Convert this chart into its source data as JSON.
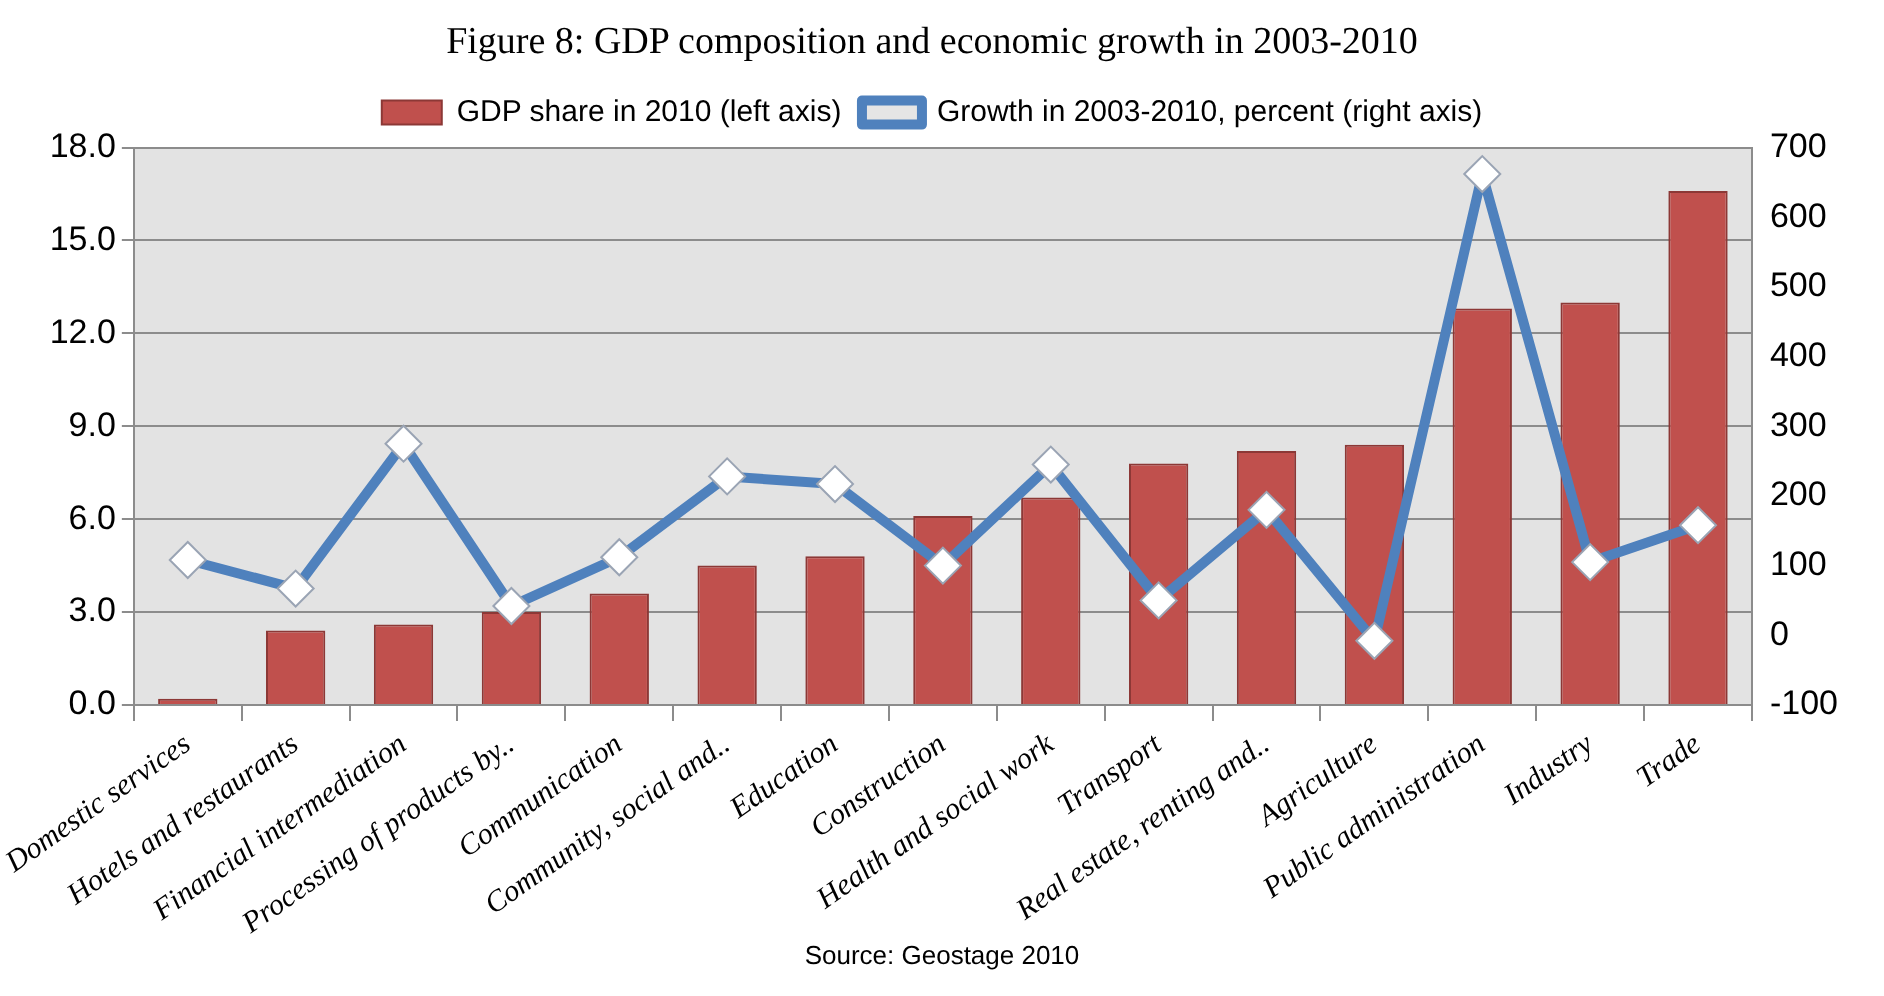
{
  "chart_data": {
    "type": "bar",
    "title": "Figure 8: GDP composition and economic growth in 2003-2010",
    "categories": [
      "Domestic services",
      "Hotels and restaurants",
      "Financial intermediation",
      "Processing of products by..",
      "Communication",
      "Community, social and..",
      "Education",
      "Construction",
      "Health and social work",
      "Transport",
      "Real estate, renting and..",
      "Agriculture",
      "Public administration",
      "Industry",
      "Trade"
    ],
    "series": [
      {
        "name": "GDP share in 2010 (left axis)",
        "color": "#c0504d",
        "values": [
          0.2,
          2.4,
          2.6,
          3.0,
          3.6,
          4.5,
          4.8,
          6.1,
          6.7,
          7.8,
          8.2,
          8.4,
          12.8,
          13.0,
          16.6
        ]
      },
      {
        "name": "Growth in 2003-2010, percent (right axis)",
        "type": "line",
        "axis": "y2",
        "color": "#4f81bd",
        "values": [
          108,
          67,
          275,
          42,
          112,
          228,
          217,
          100,
          245,
          50,
          180,
          -8,
          662,
          105,
          158
        ]
      }
    ],
    "ylim": [
      0,
      18
    ],
    "yticks": [
      {
        "value": 0,
        "label": "0.0"
      },
      {
        "value": 3,
        "label": "3.0"
      },
      {
        "value": 6,
        "label": "6.0"
      },
      {
        "value": 9,
        "label": "9.0"
      },
      {
        "value": 12,
        "label": "12.0"
      },
      {
        "value": 15,
        "label": "15.0"
      },
      {
        "value": 18,
        "label": "18.0"
      }
    ],
    "y2lim": [
      -100,
      700
    ],
    "y2ticks": [
      -100,
      0,
      100,
      200,
      300,
      400,
      500,
      600,
      700
    ],
    "grid": "y",
    "legend": "top",
    "marker": "diamond",
    "line_style": "solid",
    "annotations": [
      "Source: Geostage 2010"
    ]
  }
}
